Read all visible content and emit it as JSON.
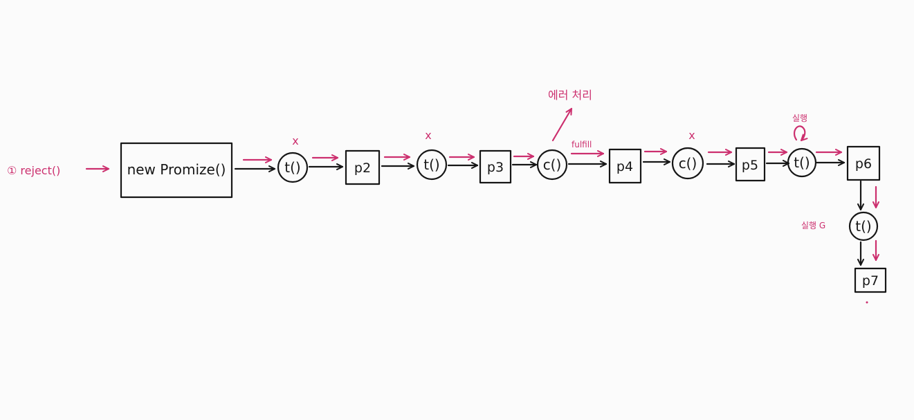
{
  "colors": {
    "ink": "#161616",
    "accent": "#cc2f6e",
    "background": "#fbfbfb"
  },
  "start_label": "① reject()",
  "nodes": {
    "promise": "new Promize()",
    "then1": "t()",
    "p2": "p2",
    "then2": "t()",
    "p3": "p3",
    "catch1": "c()",
    "p4": "p4",
    "catch2": "c()",
    "p5": "p5",
    "then3": "t()",
    "p6": "p6",
    "then4": "t()",
    "p7": "p7"
  },
  "annotations": {
    "x_mark": "x",
    "error_handling": "에러 처리",
    "fulfill": "fulfill",
    "run_above": "실행",
    "run_left": "실행 G"
  }
}
